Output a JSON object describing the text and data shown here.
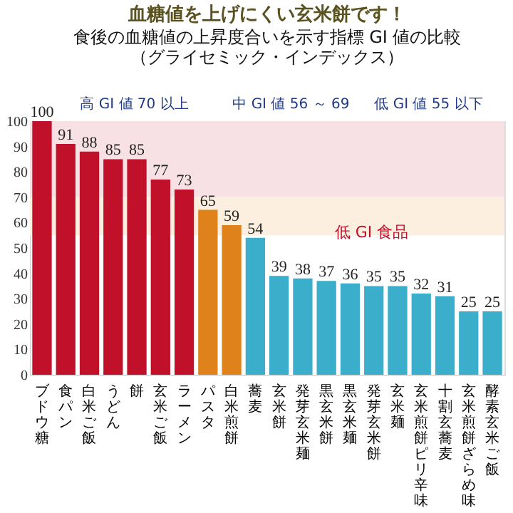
{
  "chart_data": {
    "type": "bar",
    "title": "血糖値を上げにくい玄米餅です！",
    "subtitle": "食後の血糖値の上昇度合いを示す指標 GI 値の比較",
    "annotations": [
      "（グライセミック・インデックス）",
      "高 GI 値 70 以上",
      "中 GI 値 56 ～ 69",
      "低 GI 値 55 以下",
      "低 GI 食品"
    ],
    "categories": [
      "ブドウ糖",
      "食パン",
      "白米ご飯",
      "うどん",
      "餅",
      "玄米ご飯",
      "ラーメン",
      "パスタ",
      "白米煎餅",
      "蕎麦",
      "玄米餅",
      "発芽玄米麺",
      "黒玄米餅",
      "黒玄米麺",
      "発芽玄米餅",
      "玄米麺",
      "玄米煎餅ピリ辛味",
      "十割玄蕎麦",
      "玄米煎餅ざらめ味",
      "酵素玄米ご飯"
    ],
    "values": [
      100,
      91,
      88,
      85,
      85,
      77,
      73,
      65,
      59,
      54,
      39,
      38,
      37,
      36,
      35,
      35,
      32,
      31,
      25,
      25
    ],
    "colors": [
      "#c0102a",
      "#c0102a",
      "#c0102a",
      "#c0102a",
      "#c0102a",
      "#c0102a",
      "#c0102a",
      "#e0821c",
      "#e0821c",
      "#3aaecb",
      "#3aaecb",
      "#3aaecb",
      "#3aaecb",
      "#3aaecb",
      "#3aaecb",
      "#3aaecb",
      "#3aaecb",
      "#3aaecb",
      "#3aaecb",
      "#3aaecb"
    ],
    "data_labels": true,
    "bands": [
      {
        "axis": "y",
        "from": 70,
        "to": 100,
        "color": "#f8e1e5"
      },
      {
        "axis": "y",
        "from": 55,
        "to": 70,
        "color": "#fcefdf"
      }
    ],
    "ylim": [
      0,
      100
    ],
    "yticks": [
      0,
      10,
      20,
      30,
      40,
      50,
      60,
      70,
      80,
      90,
      100
    ],
    "grid": false
  }
}
